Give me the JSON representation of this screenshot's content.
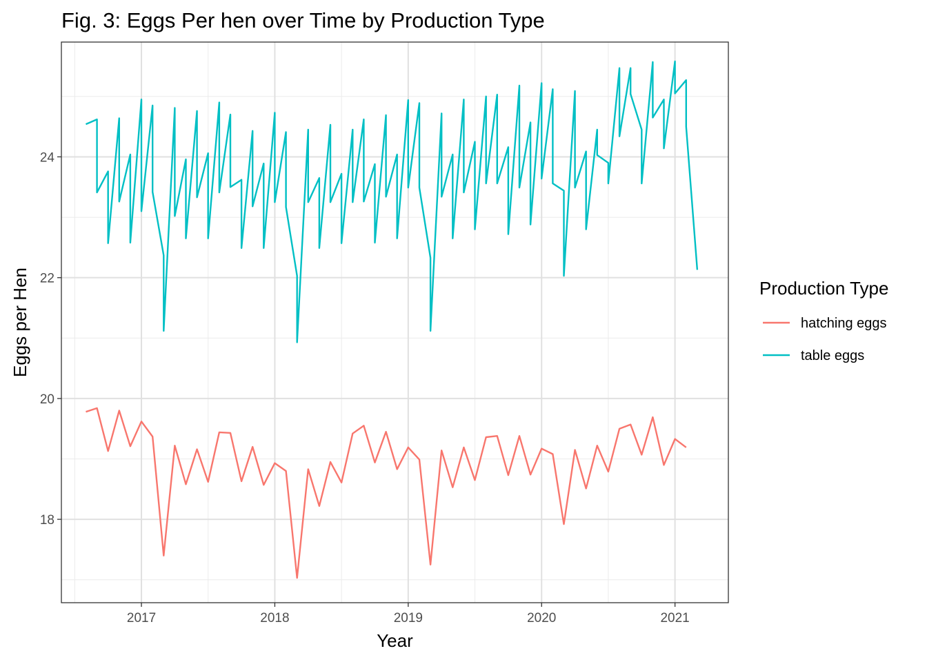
{
  "chart_data": {
    "type": "line",
    "title": "Fig. 3: Eggs Per hen over Time by Production Type",
    "xlabel": "Year",
    "ylabel": "Eggs per Hen",
    "x_ticks": [
      2017,
      2018,
      2019,
      2020,
      2021
    ],
    "x_tick_labels": [
      "2017",
      "2018",
      "2019",
      "2020",
      "2021"
    ],
    "y_ticks": [
      18,
      20,
      22,
      24
    ],
    "y_tick_labels": [
      "18",
      "20",
      "22",
      "24"
    ],
    "xlim": [
      2016.4,
      2021.4
    ],
    "ylim": [
      16.62,
      25.9
    ],
    "grid": true,
    "legend": {
      "title": "Production Type",
      "position": "right"
    },
    "series": [
      {
        "name": "hatching eggs",
        "color": "#F8766D",
        "x": [
          2016.5833,
          2016.6667,
          2016.75,
          2016.8333,
          2016.9167,
          2017.0,
          2017.0833,
          2017.1667,
          2017.25,
          2017.3333,
          2017.4167,
          2017.5,
          2017.5833,
          2017.6667,
          2017.75,
          2017.8333,
          2017.9167,
          2018.0,
          2018.0833,
          2018.1667,
          2018.25,
          2018.3333,
          2018.4167,
          2018.5,
          2018.5833,
          2018.6667,
          2018.75,
          2018.8333,
          2018.9167,
          2019.0,
          2019.0833,
          2019.1667,
          2019.25,
          2019.3333,
          2019.4167,
          2019.5,
          2019.5833,
          2019.6667,
          2019.75,
          2019.8333,
          2019.9167,
          2020.0,
          2020.0833,
          2020.1667,
          2020.25,
          2020.3333,
          2020.4167,
          2020.5,
          2020.5833,
          2020.6667,
          2020.75,
          2020.8333,
          2020.9167,
          2021.0,
          2021.0833
        ],
        "values": [
          19.78,
          19.84,
          19.13,
          19.8,
          19.21,
          19.62,
          19.37,
          17.4,
          19.22,
          18.58,
          19.16,
          18.62,
          19.44,
          19.43,
          18.63,
          19.2,
          18.57,
          18.93,
          18.8,
          17.03,
          18.83,
          18.22,
          18.95,
          18.61,
          19.42,
          19.55,
          18.94,
          19.45,
          18.83,
          19.19,
          18.99,
          17.25,
          19.14,
          18.53,
          19.19,
          18.65,
          19.36,
          19.38,
          18.73,
          19.38,
          18.74,
          19.17,
          19.08,
          17.92,
          19.15,
          18.51,
          19.22,
          18.79,
          19.5,
          19.57,
          19.07,
          19.69,
          18.9,
          19.33,
          19.19
        ]
      },
      {
        "name": "table eggs",
        "color": "#00BFC4",
        "x": [
          2016.5833,
          2016.6667,
          2016.6667,
          2016.75,
          2016.75,
          2016.8333,
          2016.8333,
          2016.9167,
          2016.9167,
          2017.0,
          2017.0,
          2017.0833,
          2017.0833,
          2017.1667,
          2017.1667,
          2017.25,
          2017.25,
          2017.3333,
          2017.3333,
          2017.4167,
          2017.4167,
          2017.5,
          2017.5,
          2017.5833,
          2017.5833,
          2017.6667,
          2017.6667,
          2017.75,
          2017.75,
          2017.8333,
          2017.8333,
          2017.9167,
          2017.9167,
          2018.0,
          2018.0,
          2018.0833,
          2018.0833,
          2018.1667,
          2018.1667,
          2018.25,
          2018.25,
          2018.3333,
          2018.3333,
          2018.4167,
          2018.4167,
          2018.5,
          2018.5,
          2018.5833,
          2018.5833,
          2018.6667,
          2018.6667,
          2018.75,
          2018.75,
          2018.8333,
          2018.8333,
          2018.9167,
          2018.9167,
          2019.0,
          2019.0,
          2019.0833,
          2019.0833,
          2019.1667,
          2019.1667,
          2019.25,
          2019.25,
          2019.3333,
          2019.3333,
          2019.4167,
          2019.4167,
          2019.5,
          2019.5,
          2019.5833,
          2019.5833,
          2019.6667,
          2019.6667,
          2019.75,
          2019.75,
          2019.8333,
          2019.8333,
          2019.9167,
          2019.9167,
          2020.0,
          2020.0,
          2020.0833,
          2020.0833,
          2020.1667,
          2020.1667,
          2020.25,
          2020.25,
          2020.3333,
          2020.3333,
          2020.4167,
          2020.4167,
          2020.5,
          2020.5,
          2020.5833,
          2020.5833,
          2020.6667,
          2020.6667,
          2020.75,
          2020.75,
          2020.8333,
          2020.8333,
          2020.9167,
          2020.9167,
          2021.0,
          2021.0,
          2021.0833,
          2021.0833,
          2021.1667
        ],
        "values": [
          24.54,
          24.62,
          23.41,
          23.76,
          22.57,
          24.64,
          23.26,
          24.04,
          22.58,
          24.95,
          23.1,
          24.85,
          23.42,
          22.37,
          21.12,
          24.81,
          23.02,
          23.96,
          22.65,
          24.76,
          23.33,
          24.06,
          22.65,
          24.9,
          23.41,
          24.7,
          23.5,
          23.62,
          22.49,
          24.43,
          23.18,
          23.89,
          22.49,
          24.73,
          23.25,
          24.41,
          23.17,
          22.03,
          20.93,
          24.45,
          23.25,
          23.65,
          22.49,
          24.53,
          23.25,
          23.72,
          22.57,
          24.45,
          23.25,
          24.62,
          23.26,
          23.88,
          22.58,
          24.69,
          23.34,
          24.04,
          22.65,
          24.94,
          23.49,
          24.89,
          23.49,
          22.33,
          21.12,
          24.72,
          23.34,
          24.04,
          22.65,
          24.95,
          23.41,
          24.25,
          22.8,
          25.0,
          23.56,
          25.03,
          23.56,
          24.16,
          22.72,
          25.18,
          23.49,
          24.57,
          22.88,
          25.22,
          23.64,
          25.12,
          23.56,
          23.44,
          22.03,
          25.09,
          23.49,
          24.09,
          22.8,
          24.45,
          24.03,
          23.9,
          23.56,
          25.47,
          24.34,
          25.47,
          25.04,
          24.45,
          23.56,
          25.57,
          24.65,
          24.95,
          24.14,
          25.58,
          25.05,
          25.27,
          24.5,
          22.13
        ]
      }
    ]
  }
}
